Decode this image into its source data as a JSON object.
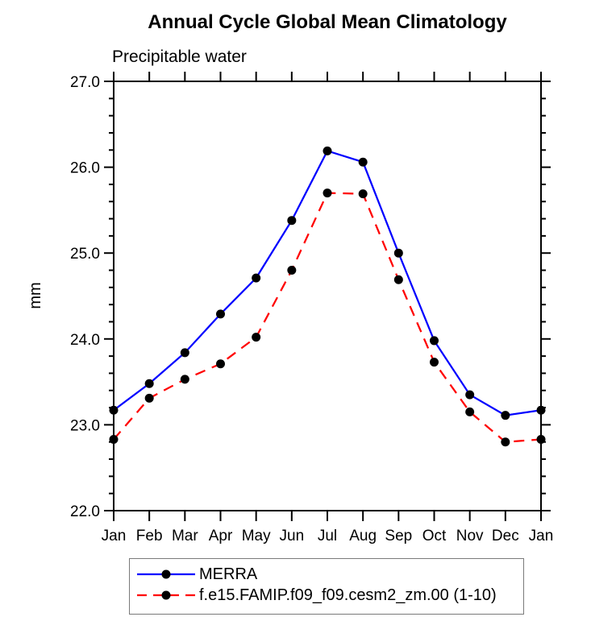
{
  "chart_data": {
    "type": "line",
    "title": "Annual Cycle Global Mean Climatology",
    "left_title": "Precipitable water",
    "ylabel": "mm",
    "xlabel": "",
    "categories": [
      "Jan",
      "Feb",
      "Mar",
      "Apr",
      "May",
      "Jun",
      "Jul",
      "Aug",
      "Sep",
      "Oct",
      "Nov",
      "Dec",
      "Jan"
    ],
    "series": [
      {
        "name": "MERRA",
        "color": "#0000ff",
        "line_style": "solid",
        "marker": "filled-circle",
        "marker_color": "#000000",
        "values": [
          23.17,
          23.48,
          23.84,
          24.29,
          24.71,
          25.38,
          26.19,
          26.06,
          25.0,
          23.98,
          23.35,
          23.11,
          23.17
        ]
      },
      {
        "name": "f.e15.FAMIP.f09_f09.cesm2_zm.00 (1-10)",
        "color": "#ff0000",
        "line_style": "dashed",
        "marker": "filled-circle",
        "marker_color": "#000000",
        "values": [
          22.83,
          23.31,
          23.53,
          23.71,
          24.02,
          24.8,
          25.7,
          25.69,
          24.69,
          23.73,
          23.15,
          22.8,
          22.83
        ]
      }
    ],
    "ylim": [
      22.0,
      27.0
    ],
    "ytick_labels": [
      "22.0",
      "23.0",
      "24.0",
      "25.0",
      "26.0",
      "27.0"
    ],
    "ytick_values": [
      22.0,
      23.0,
      24.0,
      25.0,
      26.0,
      27.0
    ],
    "ytick_minor_step": 0.2,
    "grid": false,
    "axis_color": "#000000",
    "text_color": "#000000",
    "legend_border_color": "#7a7a7a",
    "legend_position": "bottom-left"
  }
}
